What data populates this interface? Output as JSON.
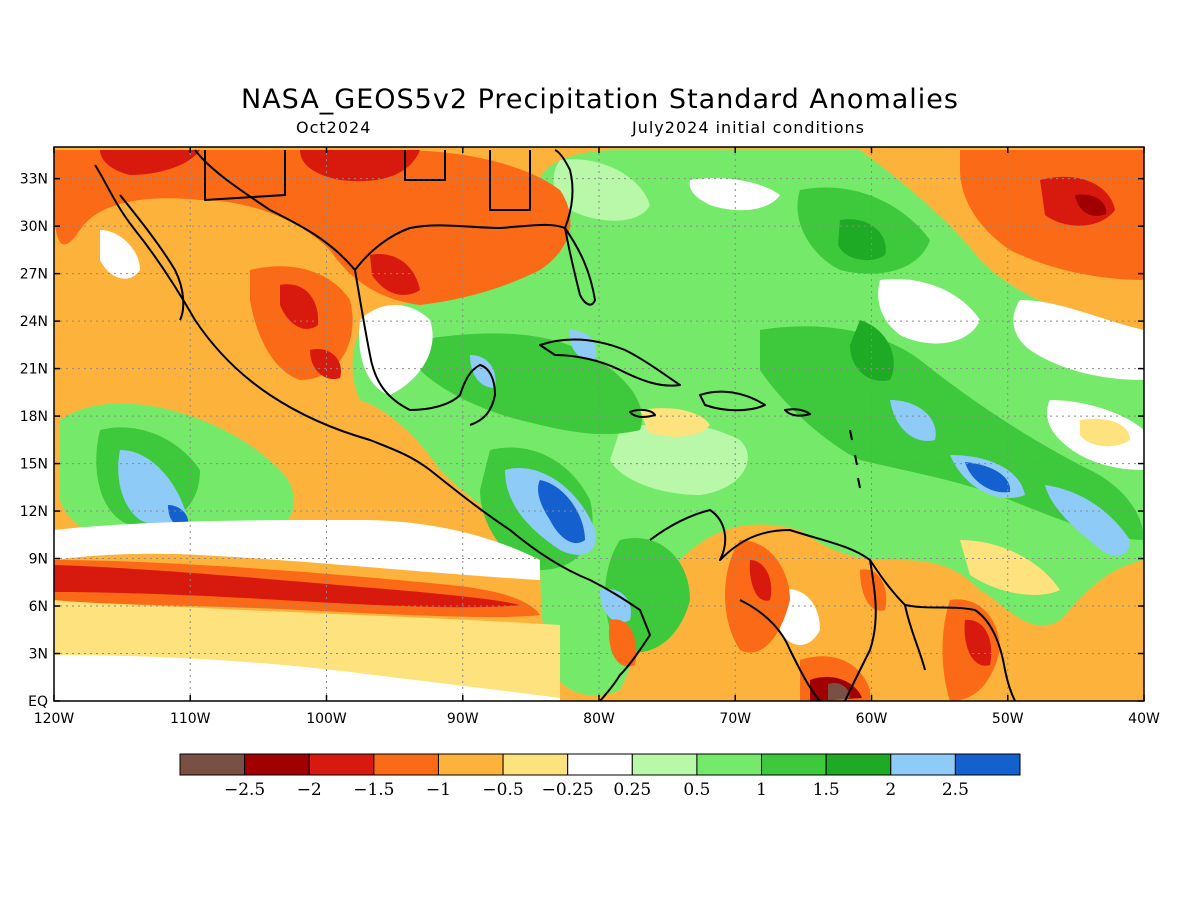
{
  "title": "NASA_GEOS5v2 Precipitation Standard Anomalies",
  "subtitle_left": "Oct2024",
  "subtitle_right": "July2024 initial conditions",
  "map": {
    "lon_range": [
      -120,
      -40
    ],
    "lat_range": [
      0,
      35
    ],
    "lat_ticks": [
      {
        "value": 33,
        "label": "33N"
      },
      {
        "value": 30,
        "label": "30N"
      },
      {
        "value": 27,
        "label": "27N"
      },
      {
        "value": 24,
        "label": "24N"
      },
      {
        "value": 21,
        "label": "21N"
      },
      {
        "value": 18,
        "label": "18N"
      },
      {
        "value": 15,
        "label": "15N"
      },
      {
        "value": 12,
        "label": "12N"
      },
      {
        "value": 9,
        "label": "9N"
      },
      {
        "value": 6,
        "label": "6N"
      },
      {
        "value": 3,
        "label": "3N"
      },
      {
        "value": 0,
        "label": "EQ"
      }
    ],
    "lon_ticks": [
      {
        "value": -120,
        "label": "120W"
      },
      {
        "value": -110,
        "label": "110W"
      },
      {
        "value": -100,
        "label": "100W"
      },
      {
        "value": -90,
        "label": "90W"
      },
      {
        "value": -80,
        "label": "80W"
      },
      {
        "value": -70,
        "label": "70W"
      },
      {
        "value": -60,
        "label": "60W"
      },
      {
        "value": -50,
        "label": "50W"
      },
      {
        "value": -40,
        "label": "40W"
      }
    ],
    "gridlines": true
  },
  "colorbar": {
    "colors": [
      "#7a5044",
      "#a00000",
      "#d81a0e",
      "#fb6a16",
      "#fdb33b",
      "#fee27d",
      "#ffffff",
      "#b8f8a8",
      "#75ea6a",
      "#3ec83c",
      "#1faa26",
      "#8ecbf7",
      "#1460cf"
    ],
    "labels": [
      "-2.5",
      "-2",
      "-1.5",
      "-1",
      "-0.5",
      "-0.25",
      "0.25",
      "0.5",
      "1",
      "1.5",
      "2",
      "2.5"
    ]
  }
}
